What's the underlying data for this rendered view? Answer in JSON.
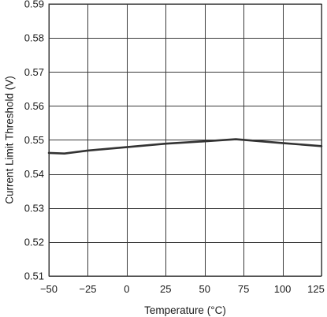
{
  "chart_data": {
    "type": "line",
    "xlabel": "Temperature (°C)",
    "ylabel": "Current Limit Threshold (V)",
    "xlim": [
      -50,
      125
    ],
    "ylim": [
      0.51,
      0.59
    ],
    "x_ticks": [
      -50,
      -25,
      0,
      25,
      50,
      75,
      100,
      125
    ],
    "x_tick_labels": [
      "−50",
      "−25",
      "0",
      "25",
      "50",
      "75",
      "100",
      "125"
    ],
    "y_ticks": [
      0.51,
      0.52,
      0.53,
      0.54,
      0.55,
      0.56,
      0.57,
      0.58,
      0.59
    ],
    "y_tick_labels": [
      "0.51",
      "0.52",
      "0.53",
      "0.54",
      "0.55",
      "0.56",
      "0.57",
      "0.58",
      "0.59"
    ],
    "grid": true,
    "series": [
      {
        "x": [
          -50,
          -40,
          -25,
          0,
          25,
          50,
          70,
          100,
          125
        ],
        "y": [
          0.5462,
          0.546,
          0.5469,
          0.5479,
          0.5489,
          0.5496,
          0.5502,
          0.5491,
          0.5482
        ]
      }
    ],
    "colors": {
      "line": "#333333",
      "grid": "#3a3a3a"
    }
  }
}
